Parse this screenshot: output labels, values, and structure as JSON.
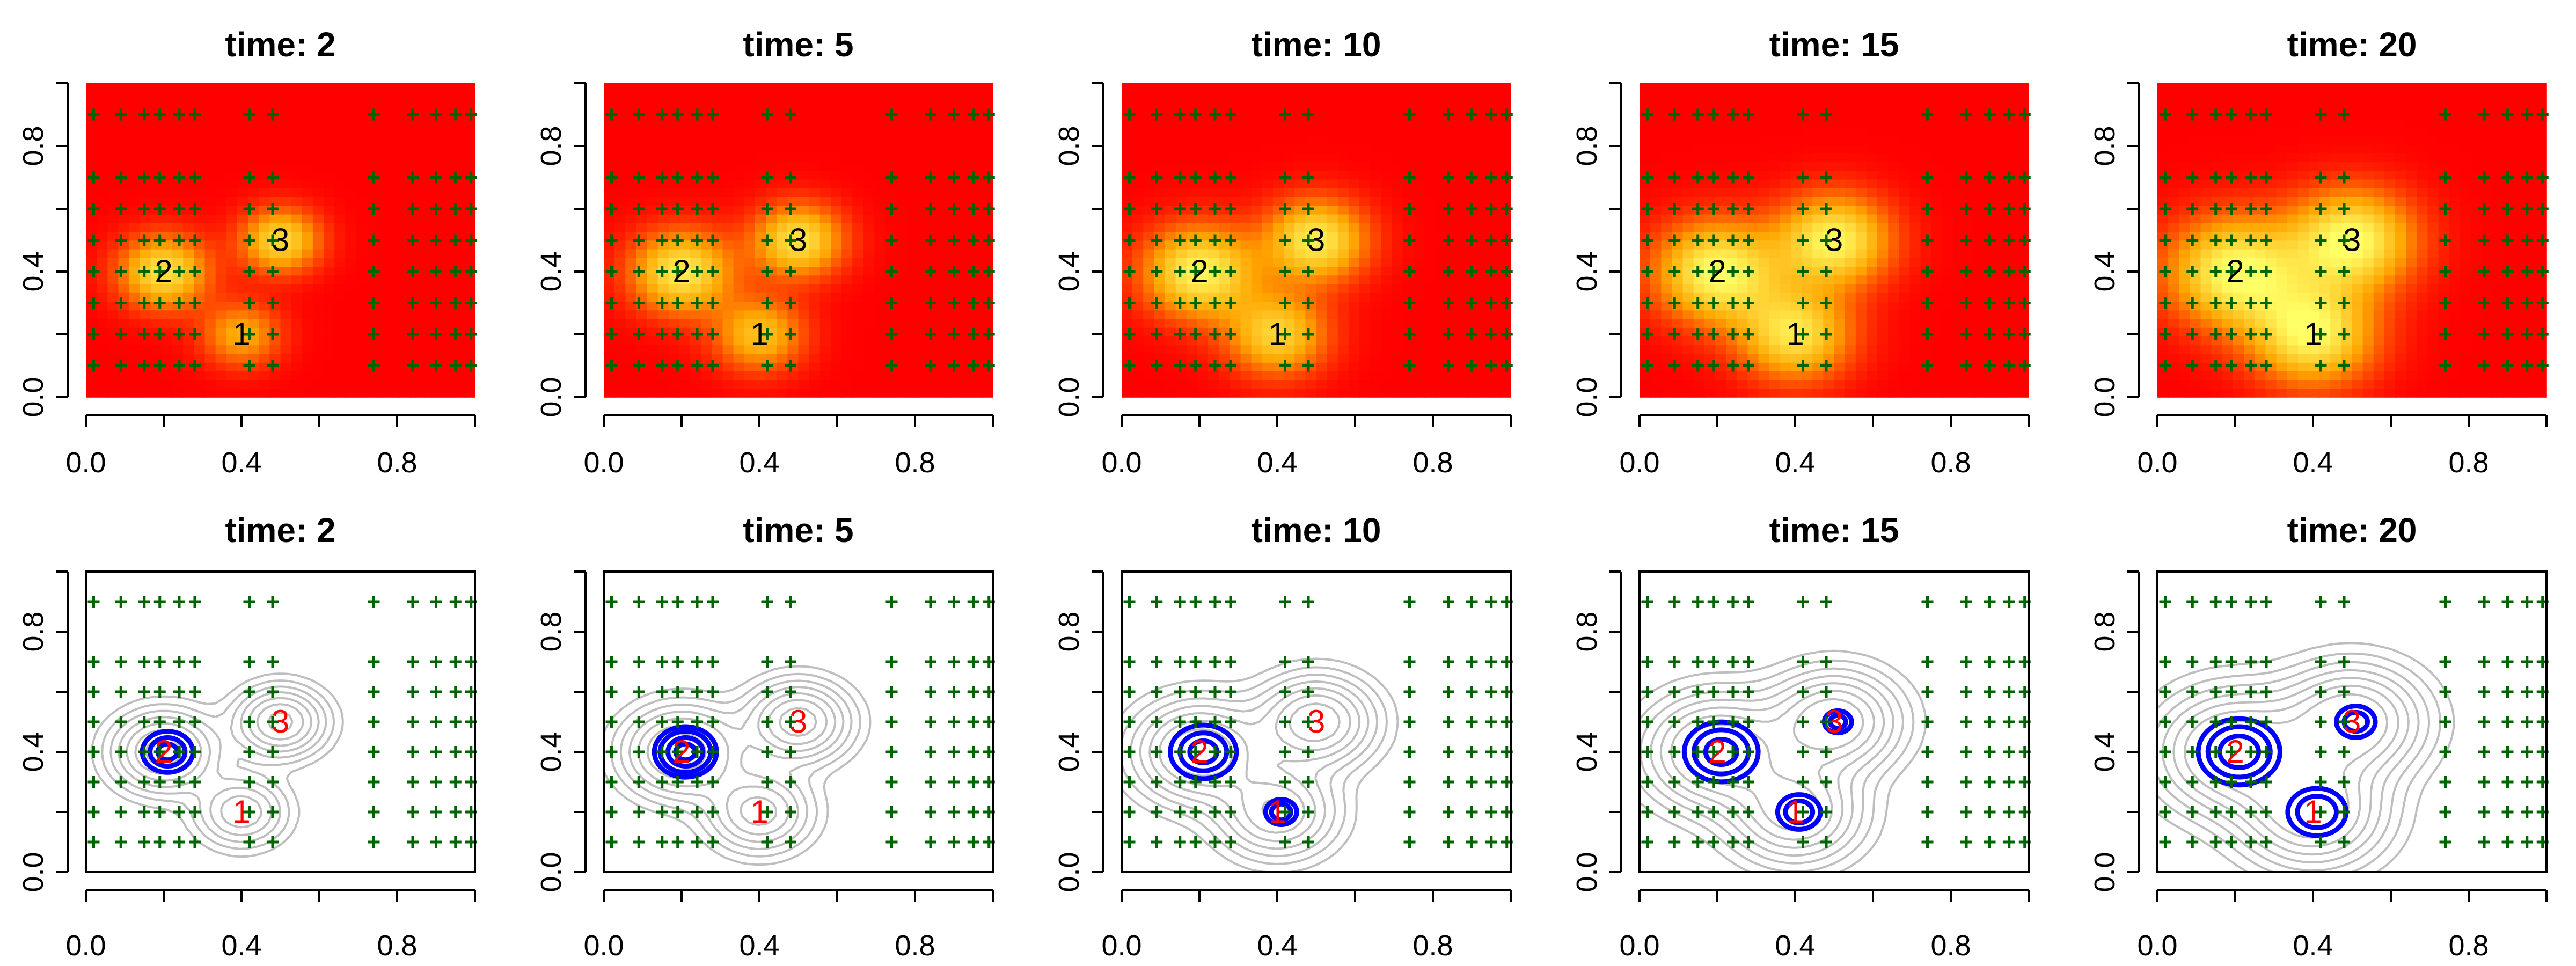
{
  "chart_data": {
    "type": "heatmap",
    "layout": "2 rows x 5 columns of panels",
    "xlim": [
      0,
      1
    ],
    "ylim": [
      0,
      1
    ],
    "x_ticks": [
      "0.0",
      "0.4",
      "0.8"
    ],
    "y_ticks": [
      "0.0",
      "0.4",
      "0.8"
    ],
    "x_tick_values": [
      0.0,
      0.4,
      0.8
    ],
    "y_tick_values": [
      0.0,
      0.4,
      0.8
    ],
    "minor_tick_values": [
      0.2,
      0.6,
      1.0
    ],
    "times": [
      2,
      5,
      10,
      15,
      20
    ],
    "title_prefix": "time: ",
    "sources": [
      {
        "label": "1",
        "x": 0.4,
        "y": 0.2
      },
      {
        "label": "2",
        "x": 0.2,
        "y": 0.4
      },
      {
        "label": "3",
        "x": 0.5,
        "y": 0.5
      }
    ],
    "sensor_x": [
      0.02,
      0.09,
      0.15,
      0.19,
      0.24,
      0.28,
      0.42,
      0.48,
      0.74,
      0.84,
      0.9,
      0.95,
      0.99
    ],
    "sensor_y": [
      0.9,
      0.7,
      0.6,
      0.5,
      0.4,
      0.3,
      0.2,
      0.1
    ],
    "plumes": [
      {
        "time": 2,
        "amp": [
          0.55,
          0.85,
          0.8
        ],
        "sigma": [
          0.07,
          0.08,
          0.07
        ]
      },
      {
        "time": 5,
        "amp": [
          0.65,
          0.9,
          0.85
        ],
        "sigma": [
          0.08,
          0.09,
          0.08
        ]
      },
      {
        "time": 10,
        "amp": [
          0.75,
          0.95,
          0.9
        ],
        "sigma": [
          0.09,
          0.1,
          0.09
        ]
      },
      {
        "time": 15,
        "amp": [
          0.85,
          1.0,
          0.95
        ],
        "sigma": [
          0.1,
          0.11,
          0.1
        ]
      },
      {
        "time": 20,
        "amp": [
          0.95,
          1.0,
          1.0
        ],
        "sigma": [
          0.11,
          0.12,
          0.11
        ]
      }
    ],
    "estimate_rings": [
      {
        "time": 2,
        "rings": [
          {
            "src": 2,
            "radii": [
              0.025,
              0.045,
              0.065
            ]
          }
        ]
      },
      {
        "time": 5,
        "rings": [
          {
            "src": 2,
            "radii": [
              0.025,
              0.045,
              0.065,
              0.08
            ]
          }
        ]
      },
      {
        "time": 10,
        "rings": [
          {
            "src": 2,
            "radii": [
              0.035,
              0.06,
              0.085
            ]
          },
          {
            "src": 1,
            "radii": [
              0.025,
              0.04
            ]
          }
        ]
      },
      {
        "time": 15,
        "rings": [
          {
            "src": 2,
            "radii": [
              0.04,
              0.07,
              0.095
            ]
          },
          {
            "src": 1,
            "radii": [
              0.035,
              0.055
            ]
          },
          {
            "src": 3,
            "radii": [
              0.02,
              0.035
            ]
          }
        ]
      },
      {
        "time": 20,
        "rings": [
          {
            "src": 2,
            "radii": [
              0.05,
              0.08,
              0.105
            ]
          },
          {
            "src": 1,
            "radii": [
              0.05,
              0.075
            ]
          },
          {
            "src": 3,
            "radii": [
              0.03,
              0.05
            ]
          }
        ]
      }
    ],
    "contour_levels": [
      0.06,
      0.12,
      0.2,
      0.3,
      0.42,
      0.56,
      0.72
    ],
    "colors": {
      "heat_low": "#ff0000",
      "heat_mid": "#ffa500",
      "heat_high": "#ffff66",
      "sensor": "#006400",
      "label_top": "#000000",
      "label_bottom": "#ff0000",
      "contour": "#bebebe",
      "ring": "#0000ff",
      "axis": "#000000"
    }
  }
}
